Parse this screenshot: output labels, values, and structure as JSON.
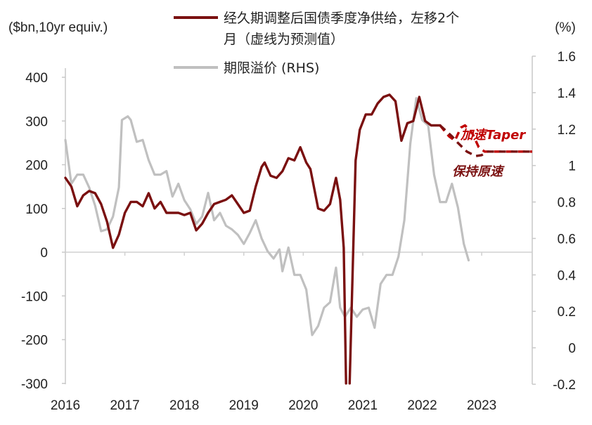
{
  "chart_data": {
    "type": "line",
    "left_axis_unit": "($bn,10yr equiv.)",
    "right_axis_unit": "(%)",
    "left_ylim": [
      -300,
      450
    ],
    "right_ylim": [
      -0.2,
      1.6
    ],
    "left_ticks": [
      -300,
      -200,
      -100,
      0,
      100,
      200,
      300,
      400
    ],
    "right_ticks": [
      -0.2,
      0,
      0.2,
      0.4,
      0.6,
      0.8,
      1,
      1.2,
      1.4,
      1.6
    ],
    "right_tick_labels": [
      "-0.2",
      "0",
      "0.2",
      "0.4",
      "0.6",
      "0.8",
      "1",
      "1.2",
      "1.4",
      "1.6"
    ],
    "x_range": [
      2016,
      2023.85
    ],
    "x_ticks": [
      2016,
      2017,
      2018,
      2019,
      2020,
      2021,
      2022,
      2023
    ],
    "x_tick_labels": [
      "2016",
      "2017",
      "2018",
      "2019",
      "2020",
      "2021",
      "2022",
      "2023"
    ],
    "legend": [
      {
        "label": "经久期调整后国债季度净供给，左移2个月（虚线为预测值）",
        "line1": "经久期调整后国债季度净供给，左移2个",
        "line2": "月（虚线为预测值）",
        "color": "#7a1010"
      },
      {
        "label": "期限溢价 (RHS)",
        "color": "#c0c0c0"
      }
    ],
    "annotations": [
      {
        "text": "加速Taper",
        "color": "#c00000"
      },
      {
        "text": "保持原速",
        "color": "#7a1010"
      }
    ],
    "series": [
      {
        "name": "经久期调整后国债季度净供给，左移2个月（虚线为预测值）",
        "axis": "left",
        "color": "#7a1010",
        "style": "solid",
        "points": [
          [
            2016.0,
            170
          ],
          [
            2016.1,
            150
          ],
          [
            2016.2,
            105
          ],
          [
            2016.3,
            130
          ],
          [
            2016.4,
            140
          ],
          [
            2016.5,
            135
          ],
          [
            2016.6,
            110
          ],
          [
            2016.7,
            70
          ],
          [
            2016.8,
            10
          ],
          [
            2016.9,
            40
          ],
          [
            2017.0,
            90
          ],
          [
            2017.1,
            115
          ],
          [
            2017.2,
            115
          ],
          [
            2017.3,
            105
          ],
          [
            2017.4,
            135
          ],
          [
            2017.5,
            100
          ],
          [
            2017.6,
            115
          ],
          [
            2017.7,
            90
          ],
          [
            2017.8,
            90
          ],
          [
            2017.9,
            90
          ],
          [
            2018.0,
            85
          ],
          [
            2018.1,
            90
          ],
          [
            2018.2,
            50
          ],
          [
            2018.3,
            65
          ],
          [
            2018.4,
            90
          ],
          [
            2018.5,
            110
          ],
          [
            2018.6,
            115
          ],
          [
            2018.7,
            120
          ],
          [
            2018.8,
            130
          ],
          [
            2018.9,
            110
          ],
          [
            2019.0,
            90
          ],
          [
            2019.1,
            95
          ],
          [
            2019.2,
            150
          ],
          [
            2019.3,
            195
          ],
          [
            2019.35,
            205
          ],
          [
            2019.45,
            175
          ],
          [
            2019.55,
            170
          ],
          [
            2019.65,
            185
          ],
          [
            2019.75,
            215
          ],
          [
            2019.85,
            210
          ],
          [
            2019.95,
            240
          ],
          [
            2020.05,
            205
          ],
          [
            2020.12,
            190
          ],
          [
            2020.25,
            100
          ],
          [
            2020.35,
            95
          ],
          [
            2020.45,
            110
          ],
          [
            2020.55,
            170
          ],
          [
            2020.62,
            120
          ],
          [
            2020.68,
            10
          ],
          [
            2020.72,
            -300
          ]
        ]
      },
      {
        "name": "经久期调整后国债季度净供给，左移2个月（虚线为预测值）",
        "axis": "left",
        "color": "#7a1010",
        "style": "solid",
        "points": [
          [
            2020.78,
            -300
          ],
          [
            2020.88,
            210
          ],
          [
            2020.95,
            280
          ],
          [
            2021.05,
            315
          ],
          [
            2021.15,
            315
          ],
          [
            2021.25,
            340
          ],
          [
            2021.35,
            355
          ],
          [
            2021.45,
            360
          ],
          [
            2021.55,
            345
          ],
          [
            2021.65,
            255
          ],
          [
            2021.75,
            295
          ],
          [
            2021.85,
            300
          ],
          [
            2021.95,
            355
          ],
          [
            2022.05,
            300
          ],
          [
            2022.15,
            290
          ],
          [
            2022.3,
            290
          ]
        ]
      },
      {
        "name": "经久期调整后国债季度净供给，左移2个月（虚线为预测值）",
        "axis": "left",
        "color": "#c00000",
        "style": "dashed",
        "points": [
          [
            2022.3,
            290
          ],
          [
            2022.45,
            265
          ],
          [
            2022.55,
            255
          ],
          [
            2022.65,
            285
          ],
          [
            2022.72,
            290
          ],
          [
            2022.85,
            270
          ],
          [
            2022.95,
            240
          ],
          [
            2023.05,
            230
          ],
          [
            2023.85,
            230
          ]
        ]
      },
      {
        "name": "经久期调整后国债季度净供给，左移2个月（虚线为预测值）",
        "axis": "left",
        "color": "#7a1010",
        "style": "dashed",
        "points": [
          [
            2022.3,
            290
          ],
          [
            2022.5,
            265
          ],
          [
            2022.6,
            250
          ],
          [
            2022.75,
            230
          ],
          [
            2022.9,
            220
          ],
          [
            2023.0,
            222
          ],
          [
            2023.1,
            230
          ],
          [
            2023.85,
            230
          ]
        ]
      },
      {
        "name": "期限溢价 (RHS)",
        "axis": "right",
        "color": "#c0c0c0",
        "style": "solid",
        "points": [
          [
            2016.0,
            1.14
          ],
          [
            2016.1,
            0.9
          ],
          [
            2016.2,
            0.95
          ],
          [
            2016.3,
            0.95
          ],
          [
            2016.4,
            0.88
          ],
          [
            2016.5,
            0.78
          ],
          [
            2016.6,
            0.64
          ],
          [
            2016.7,
            0.65
          ],
          [
            2016.8,
            0.72
          ],
          [
            2016.9,
            0.88
          ],
          [
            2016.95,
            1.25
          ],
          [
            2017.05,
            1.27
          ],
          [
            2017.1,
            1.25
          ],
          [
            2017.2,
            1.13
          ],
          [
            2017.3,
            1.14
          ],
          [
            2017.4,
            1.03
          ],
          [
            2017.5,
            0.95
          ],
          [
            2017.6,
            0.95
          ],
          [
            2017.7,
            0.97
          ],
          [
            2017.8,
            0.83
          ],
          [
            2017.9,
            0.9
          ],
          [
            2018.0,
            0.81
          ],
          [
            2018.1,
            0.76
          ],
          [
            2018.2,
            0.68
          ],
          [
            2018.3,
            0.72
          ],
          [
            2018.4,
            0.85
          ],
          [
            2018.5,
            0.7
          ],
          [
            2018.6,
            0.74
          ],
          [
            2018.7,
            0.67
          ],
          [
            2018.8,
            0.65
          ],
          [
            2018.9,
            0.62
          ],
          [
            2019.0,
            0.57
          ],
          [
            2019.1,
            0.63
          ],
          [
            2019.2,
            0.7
          ],
          [
            2019.3,
            0.6
          ],
          [
            2019.4,
            0.53
          ],
          [
            2019.5,
            0.49
          ],
          [
            2019.6,
            0.54
          ],
          [
            2019.65,
            0.42
          ],
          [
            2019.75,
            0.55
          ],
          [
            2019.85,
            0.4
          ],
          [
            2019.95,
            0.4
          ],
          [
            2020.05,
            0.32
          ],
          [
            2020.15,
            0.07
          ],
          [
            2020.25,
            0.12
          ],
          [
            2020.35,
            0.22
          ],
          [
            2020.45,
            0.25
          ],
          [
            2020.55,
            0.44
          ],
          [
            2020.62,
            0.22
          ],
          [
            2020.7,
            0.17
          ],
          [
            2020.8,
            0.22
          ],
          [
            2020.9,
            0.17
          ],
          [
            2021.0,
            0.21
          ],
          [
            2021.1,
            0.22
          ],
          [
            2021.2,
            0.11
          ],
          [
            2021.3,
            0.35
          ],
          [
            2021.4,
            0.4
          ],
          [
            2021.5,
            0.4
          ],
          [
            2021.6,
            0.5
          ],
          [
            2021.7,
            0.7
          ],
          [
            2021.8,
            1.12
          ],
          [
            2021.9,
            1.37
          ],
          [
            2022.0,
            1.25
          ],
          [
            2022.1,
            1.22
          ],
          [
            2022.2,
            0.95
          ],
          [
            2022.3,
            0.8
          ],
          [
            2022.4,
            0.8
          ],
          [
            2022.5,
            0.9
          ],
          [
            2022.6,
            0.77
          ],
          [
            2022.7,
            0.57
          ],
          [
            2022.78,
            0.48
          ]
        ]
      }
    ]
  }
}
